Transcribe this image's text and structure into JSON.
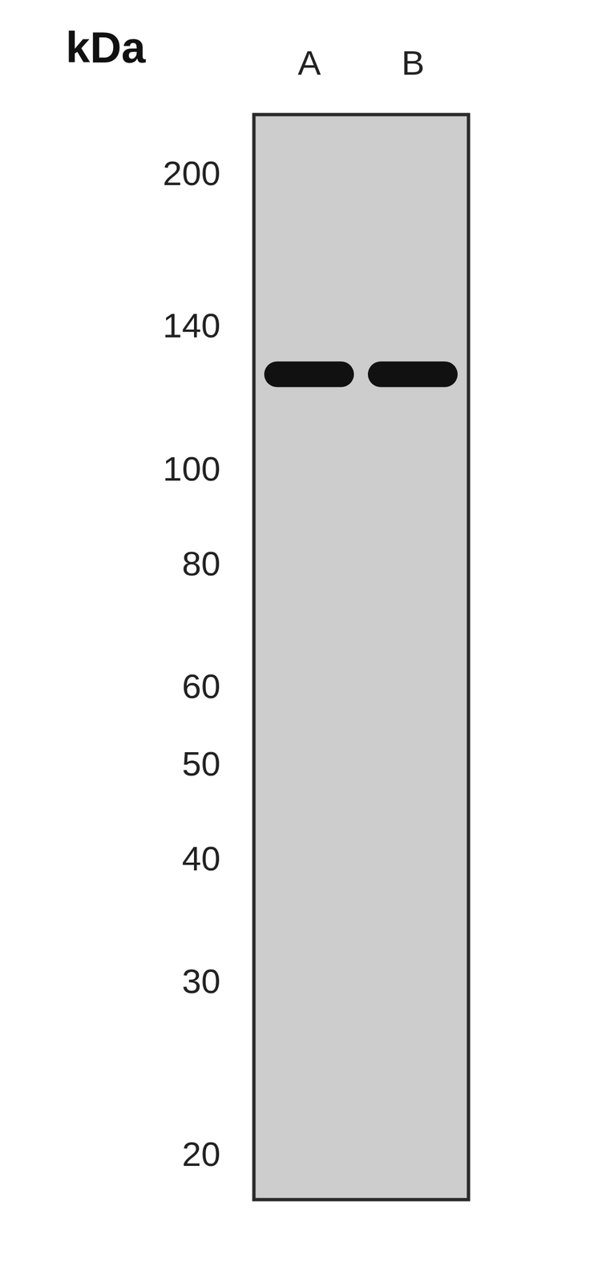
{
  "chart_data": {
    "type": "blot",
    "ylabel": "kDa",
    "categories": [
      "A",
      "B"
    ],
    "values": [
      125,
      125
    ],
    "color": "#111111",
    "log": "y",
    "ylim": [
      18,
      230
    ],
    "yticks": [
      200,
      140,
      100,
      80,
      60,
      50,
      40,
      30,
      20
    ]
  }
}
